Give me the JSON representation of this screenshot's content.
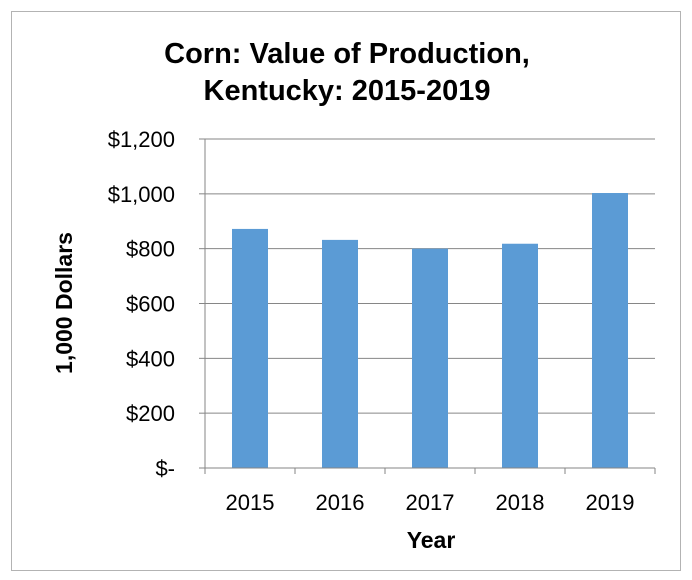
{
  "chart_data": {
    "type": "bar",
    "title_lines": [
      "Corn: Value of Production,",
      "Kentucky: 2015-2019"
    ],
    "xlabel": "Year",
    "ylabel": "1,000 Dollars",
    "categories": [
      "2015",
      "2016",
      "2017",
      "2018",
      "2019"
    ],
    "values": [
      872,
      832,
      800,
      818,
      1003
    ],
    "ylim": [
      0,
      1200
    ],
    "yticks": [
      0,
      200,
      400,
      600,
      800,
      1000,
      1200
    ],
    "ytick_labels": [
      "$-",
      "$200",
      "$400",
      "$600",
      "$800",
      "$1,000",
      "$1,200"
    ],
    "grid": true,
    "legend": "none",
    "bar_color": "#5b9bd5",
    "gridline_color": "#868686"
  }
}
